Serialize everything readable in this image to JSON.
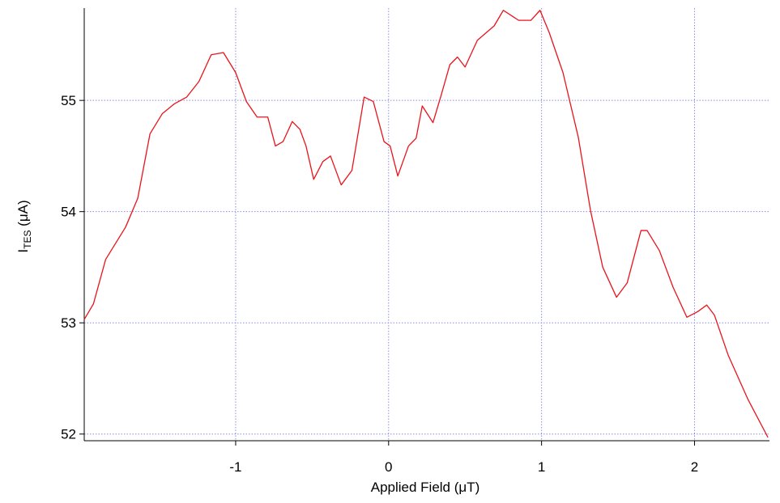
{
  "chart_data": {
    "type": "line",
    "x_label": "Applied Field (μT)",
    "y_label": {
      "main": "I",
      "sub": "TES",
      "rest": " (μA)"
    },
    "xlim": [
      -1.99,
      2.49
    ],
    "ylim": [
      51.94,
      55.83
    ],
    "xticks": [
      -1,
      0,
      1,
      2
    ],
    "yticks": [
      52,
      53,
      54,
      55
    ],
    "grid": true,
    "color": "#e8141c",
    "x": [
      -1.99,
      -1.93,
      -1.85,
      -1.72,
      -1.64,
      -1.56,
      -1.48,
      -1.4,
      -1.32,
      -1.24,
      -1.16,
      -1.08,
      -1.0,
      -0.93,
      -0.86,
      -0.79,
      -0.74,
      -0.69,
      -0.63,
      -0.58,
      -0.54,
      -0.49,
      -0.43,
      -0.38,
      -0.31,
      -0.24,
      -0.16,
      -0.1,
      -0.03,
      0.01,
      0.06,
      0.13,
      0.18,
      0.22,
      0.29,
      0.34,
      0.4,
      0.45,
      0.5,
      0.58,
      0.69,
      0.75,
      0.85,
      0.93,
      0.99,
      1.05,
      1.14,
      1.24,
      1.32,
      1.4,
      1.49,
      1.56,
      1.65,
      1.69,
      1.77,
      1.86,
      1.95,
      2.02,
      2.08,
      2.13,
      2.22,
      2.35,
      2.48
    ],
    "values": [
      53.03,
      53.17,
      53.57,
      53.86,
      54.12,
      54.7,
      54.88,
      54.97,
      55.03,
      55.17,
      55.41,
      55.43,
      55.25,
      54.99,
      54.85,
      54.85,
      54.59,
      54.63,
      54.81,
      54.74,
      54.59,
      54.29,
      54.45,
      54.5,
      54.24,
      54.37,
      55.03,
      54.99,
      54.63,
      54.59,
      54.32,
      54.59,
      54.66,
      54.95,
      54.8,
      55.03,
      55.32,
      55.39,
      55.3,
      55.54,
      55.67,
      55.81,
      55.72,
      55.72,
      55.81,
      55.61,
      55.25,
      54.67,
      54.01,
      53.5,
      53.23,
      53.36,
      53.83,
      53.83,
      53.65,
      53.32,
      53.05,
      53.1,
      53.16,
      53.07,
      52.71,
      52.31,
      51.97
    ]
  }
}
